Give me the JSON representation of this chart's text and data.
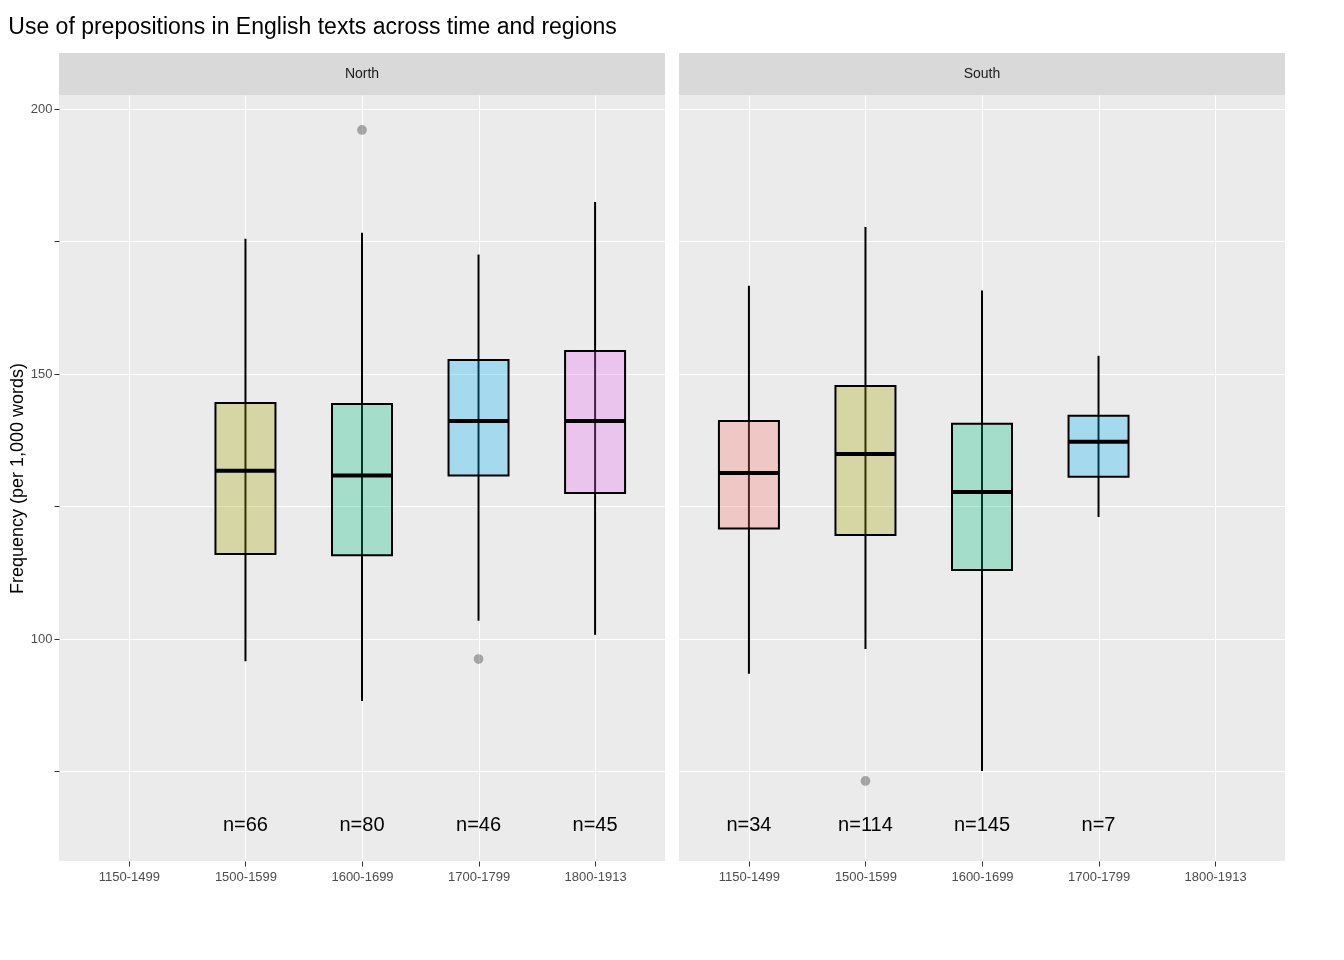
{
  "chart_data": [
    {
      "type": "box",
      "title": "Use of prepositions in English texts across time and regions",
      "subtitle": "North",
      "ylabel": "Frequency (per 1,000 words)",
      "categories": [
        "1150-1499",
        "1500-1599",
        "1600-1699",
        "1700-1799",
        "1800-1913"
      ],
      "colors": [
        "#f8766d",
        "#a3a500",
        "#00bf7d",
        "#00b0f6",
        "#e76bf3"
      ],
      "boxes": [
        null,
        {
          "low": 95.8,
          "q1": 116,
          "median": 131.7,
          "q3": 144.5,
          "high": 175.5
        },
        {
          "low": 88.3,
          "q1": 115.8,
          "median": 130.8,
          "q3": 144.3,
          "high": 176.6,
          "outliers": [
            196
          ]
        },
        {
          "low": 103.4,
          "q1": 130.8,
          "median": 141.1,
          "q3": 152.6,
          "high": 172.5,
          "outliers": [
            96.2
          ]
        },
        {
          "low": 100.8,
          "q1": 127.5,
          "median": 141.1,
          "q3": 154.3,
          "high": 182.4
        }
      ],
      "ylim": [
        58.1,
        202.6
      ],
      "yticks": [
        {
          "value": 75,
          "label": null
        },
        100,
        {
          "value": 125,
          "label": null
        },
        150,
        {
          "value": 175,
          "label": null
        },
        200
      ],
      "grid": true,
      "annotations": [
        "n=66",
        "n=80",
        "n=46",
        "n=45"
      ]
    },
    {
      "type": "box",
      "subtitle": "South",
      "categories": [
        "1150-1499",
        "1500-1599",
        "1600-1699",
        "1700-1799",
        "1800-1913"
      ],
      "colors": [
        "#f8766d",
        "#a3a500",
        "#00bf7d",
        "#00b0f6",
        "#e76bf3"
      ],
      "boxes": [
        {
          "low": 93.4,
          "q1": 120.8,
          "median": 131.3,
          "q3": 141.1,
          "high": 166.6
        },
        {
          "low": 98.1,
          "q1": 119.6,
          "median": 134.9,
          "q3": 147.7,
          "high": 177.7,
          "outliers": [
            73.2
          ]
        },
        {
          "low": 75.1,
          "q1": 113,
          "median": 127.7,
          "q3": 140.6,
          "high": 165.7
        },
        {
          "low": 123,
          "q1": 130.6,
          "median": 137.2,
          "q3": 142.1,
          "high": 153.4
        },
        null
      ],
      "ylim": [
        58.1,
        202.6
      ],
      "yticks": [
        {
          "value": 75,
          "label": null
        },
        100,
        {
          "value": 125,
          "label": null
        },
        150,
        {
          "value": 175,
          "label": null
        },
        200
      ],
      "grid": true,
      "tick_labels": "x",
      "annotations": [
        "n=34",
        "n=114",
        "n=145",
        "n=7"
      ]
    }
  ]
}
